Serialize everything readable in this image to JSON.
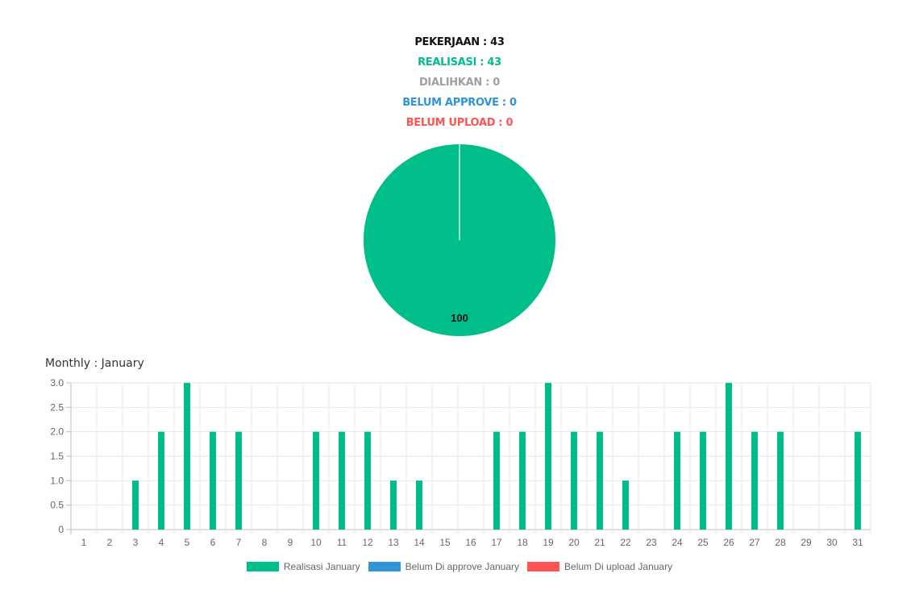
{
  "summary": {
    "pekerjaan": "PEKERJAAN : 43",
    "realisasi": "REALISASI : 43",
    "dialihkan": "DIALIHKAN : 0",
    "belum_approve": "BELUM APPROVE : 0",
    "belum_upload": "BELUM UPLOAD : 0"
  },
  "monthly_title": "Monthly : January",
  "colors": {
    "realisasi": "#00be8a",
    "approve": "#2f95d6",
    "upload": "#ff5454",
    "dialihkan": "#a0a0a0"
  },
  "chart_data": [
    {
      "type": "pie",
      "slices": [
        {
          "label": "Realisasi",
          "value": 100
        },
        {
          "label": "Dialihkan",
          "value": 0
        },
        {
          "label": "Belum Approve",
          "value": 0
        },
        {
          "label": "Belum Upload",
          "value": 0
        }
      ],
      "data_labels": [
        "100"
      ]
    },
    {
      "type": "bar",
      "title": "Monthly : January",
      "categories": [
        "1",
        "2",
        "3",
        "4",
        "5",
        "6",
        "7",
        "8",
        "9",
        "10",
        "11",
        "12",
        "13",
        "14",
        "15",
        "16",
        "17",
        "18",
        "19",
        "20",
        "21",
        "22",
        "23",
        "24",
        "25",
        "26",
        "27",
        "28",
        "29",
        "30",
        "31"
      ],
      "series": [
        {
          "name": "Realisasi January",
          "values": [
            0,
            0,
            1,
            2,
            3,
            2,
            2,
            0,
            0,
            2,
            2,
            2,
            1,
            1,
            0,
            0,
            2,
            2,
            3,
            2,
            2,
            1,
            0,
            2,
            2,
            3,
            2,
            2,
            0,
            0,
            2
          ]
        },
        {
          "name": "Belum Di approve January",
          "values": [
            0,
            0,
            0,
            0,
            0,
            0,
            0,
            0,
            0,
            0,
            0,
            0,
            0,
            0,
            0,
            0,
            0,
            0,
            0,
            0,
            0,
            0,
            0,
            0,
            0,
            0,
            0,
            0,
            0,
            0,
            0
          ]
        },
        {
          "name": "Belum Di upload January",
          "values": [
            0,
            0,
            0,
            0,
            0,
            0,
            0,
            0,
            0,
            0,
            0,
            0,
            0,
            0,
            0,
            0,
            0,
            0,
            0,
            0,
            0,
            0,
            0,
            0,
            0,
            0,
            0,
            0,
            0,
            0,
            0
          ]
        }
      ],
      "yticks": [
        "0",
        "0.5",
        "1.0",
        "1.5",
        "2.0",
        "2.5",
        "3.0"
      ],
      "ylim": [
        0,
        3
      ],
      "grid": true,
      "legend_position": "bottom"
    }
  ]
}
